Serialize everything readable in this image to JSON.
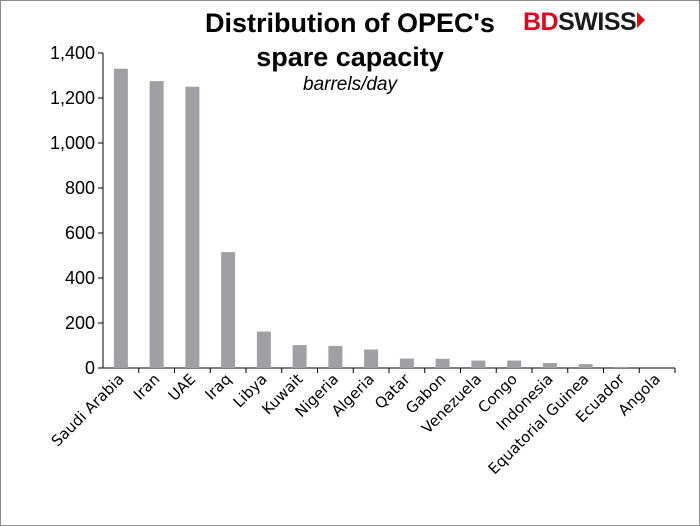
{
  "logo": {
    "brand_left": "BD",
    "brand_right": "SWISS"
  },
  "chart_data": {
    "type": "bar",
    "title_line1": "Distribution of OPEC's",
    "title_line2": "spare capacity",
    "subtitle": "barrels/day",
    "xlabel": "",
    "ylabel": "",
    "ylim": [
      0,
      1400
    ],
    "yticks": [
      "0",
      "200",
      "400",
      "600",
      "800",
      "1,000",
      "1,200",
      "1,400"
    ],
    "grid": false,
    "bar_color": "#a0a0a4",
    "categories": [
      "Saudi Arabia",
      "Iran",
      "UAE",
      "Iraq",
      "Libya",
      "Kuwait",
      "Nigeria",
      "Algeria",
      "Qatar",
      "Gabon",
      "Venezuela",
      "Congo",
      "Indonesia",
      "Equatorial Guinea",
      "Ecuador",
      "Angola"
    ],
    "values": [
      1330,
      1275,
      1250,
      515,
      162,
      102,
      98,
      82,
      42,
      41,
      33,
      33,
      22,
      17,
      5,
      0
    ]
  }
}
